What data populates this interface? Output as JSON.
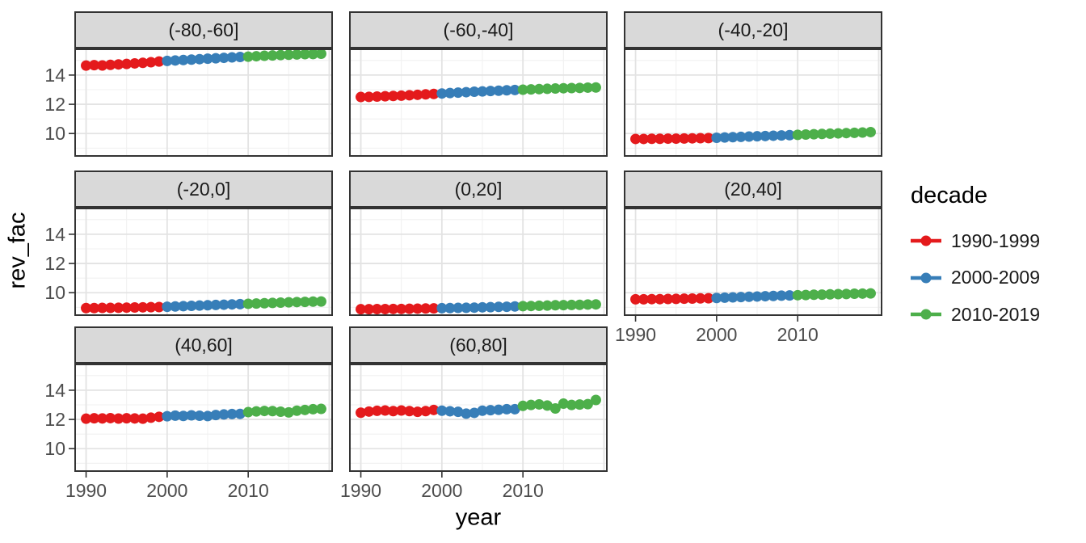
{
  "figure": {
    "background": "#FFFFFF",
    "x_axis_title": "year",
    "y_axis_title": "rev_fac",
    "colors": {
      "strip_fill": "#D9D9D9",
      "panel_background": "#FFFFFF",
      "panel_border": "#333333",
      "grid_major": "#E3E3E3",
      "grid_minor": "#F1F1F1",
      "tick_mark": "#333333",
      "tick_text": "#4D4D4D"
    },
    "legend": {
      "title": "decade",
      "entries": [
        {
          "label": "1990-1999",
          "color": "#E41A1C"
        },
        {
          "label": "2000-2009",
          "color": "#377EB8"
        },
        {
          "label": "2010-2019",
          "color": "#4DAF4A"
        }
      ]
    }
  },
  "chart_data": {
    "type": "scatter",
    "xlabel": "year",
    "ylabel": "rev_fac",
    "legend_title": "decade",
    "legend_position": "right",
    "grid": true,
    "x_ticks": [
      1990,
      2000,
      2010
    ],
    "x_minor_ticks": [
      1995,
      2005,
      2015
    ],
    "x_grid_major": [
      1990,
      2000,
      2010,
      2020
    ],
    "y_ticks": [
      10,
      12,
      14
    ],
    "y_minor_ticks": [
      9,
      11,
      13,
      15
    ],
    "xlim": [
      1988.55,
      2020.45
    ],
    "ylim": [
      8.41,
      15.82
    ],
    "years": [
      1990,
      1991,
      1992,
      1993,
      1994,
      1995,
      1996,
      1997,
      1998,
      1999,
      2000,
      2001,
      2002,
      2003,
      2004,
      2005,
      2006,
      2007,
      2008,
      2009,
      2010,
      2011,
      2012,
      2013,
      2014,
      2015,
      2016,
      2017,
      2018,
      2019
    ],
    "decades": [
      {
        "name": "1990-1999",
        "start": 1990,
        "end": 1999,
        "color": "#E41A1C"
      },
      {
        "name": "2000-2009",
        "start": 2000,
        "end": 2009,
        "color": "#377EB8"
      },
      {
        "name": "2010-2019",
        "start": 2010,
        "end": 2019,
        "color": "#4DAF4A"
      }
    ],
    "facets": [
      {
        "label": "(-80,-60]",
        "values": [
          14.65,
          14.68,
          14.66,
          14.7,
          14.73,
          14.76,
          14.8,
          14.84,
          14.88,
          14.93,
          14.97,
          15.0,
          15.03,
          15.06,
          15.09,
          15.12,
          15.15,
          15.18,
          15.21,
          15.24,
          15.26,
          15.29,
          15.32,
          15.34,
          15.37,
          15.39,
          15.41,
          15.43,
          15.44,
          15.46
        ]
      },
      {
        "label": "(-60,-40]",
        "values": [
          12.5,
          12.51,
          12.53,
          12.55,
          12.57,
          12.59,
          12.62,
          12.65,
          12.68,
          12.71,
          12.74,
          12.77,
          12.8,
          12.83,
          12.86,
          12.88,
          12.91,
          12.93,
          12.96,
          12.98,
          13.0,
          13.02,
          13.04,
          13.06,
          13.08,
          13.1,
          13.11,
          13.12,
          13.14,
          13.15
        ]
      },
      {
        "label": "(-40,-20]",
        "values": [
          9.63,
          9.63,
          9.64,
          9.64,
          9.65,
          9.65,
          9.66,
          9.67,
          9.68,
          9.69,
          9.71,
          9.73,
          9.75,
          9.77,
          9.79,
          9.81,
          9.83,
          9.85,
          9.87,
          9.89,
          9.91,
          9.93,
          9.95,
          9.97,
          9.99,
          10.01,
          10.03,
          10.05,
          10.07,
          10.1
        ]
      },
      {
        "label": "(-20,0]",
        "values": [
          8.95,
          8.95,
          8.96,
          8.96,
          8.97,
          8.98,
          8.99,
          9.0,
          9.01,
          9.02,
          9.04,
          9.06,
          9.08,
          9.1,
          9.12,
          9.14,
          9.16,
          9.18,
          9.2,
          9.22,
          9.24,
          9.26,
          9.28,
          9.3,
          9.32,
          9.34,
          9.36,
          9.37,
          9.39,
          9.4
        ]
      },
      {
        "label": "(0,20]",
        "values": [
          8.87,
          8.87,
          8.88,
          8.88,
          8.89,
          8.89,
          8.9,
          8.91,
          8.92,
          8.93,
          8.94,
          8.95,
          8.96,
          8.97,
          8.98,
          9.0,
          9.01,
          9.03,
          9.04,
          9.06,
          9.08,
          9.09,
          9.11,
          9.12,
          9.14,
          9.15,
          9.16,
          9.17,
          9.19,
          9.2
        ]
      },
      {
        "label": "(20,40]",
        "values": [
          9.55,
          9.55,
          9.56,
          9.56,
          9.57,
          9.58,
          9.59,
          9.6,
          9.61,
          9.62,
          9.64,
          9.66,
          9.68,
          9.7,
          9.72,
          9.74,
          9.76,
          9.78,
          9.8,
          9.81,
          9.83,
          9.84,
          9.86,
          9.87,
          9.89,
          9.9,
          9.91,
          9.93,
          9.94,
          9.95
        ]
      },
      {
        "label": "(40,60]",
        "values": [
          12.05,
          12.08,
          12.07,
          12.09,
          12.06,
          12.08,
          12.07,
          12.05,
          12.12,
          12.18,
          12.22,
          12.26,
          12.24,
          12.28,
          12.25,
          12.23,
          12.3,
          12.34,
          12.37,
          12.38,
          12.5,
          12.55,
          12.58,
          12.57,
          12.53,
          12.48,
          12.6,
          12.65,
          12.7,
          12.72
        ]
      },
      {
        "label": "(60,80]",
        "values": [
          12.46,
          12.54,
          12.59,
          12.61,
          12.57,
          12.61,
          12.57,
          12.52,
          12.57,
          12.65,
          12.6,
          12.56,
          12.52,
          12.4,
          12.45,
          12.6,
          12.63,
          12.66,
          12.7,
          12.7,
          12.93,
          12.99,
          13.03,
          12.95,
          12.75,
          13.08,
          12.99,
          13.02,
          13.05,
          13.33
        ]
      }
    ]
  }
}
